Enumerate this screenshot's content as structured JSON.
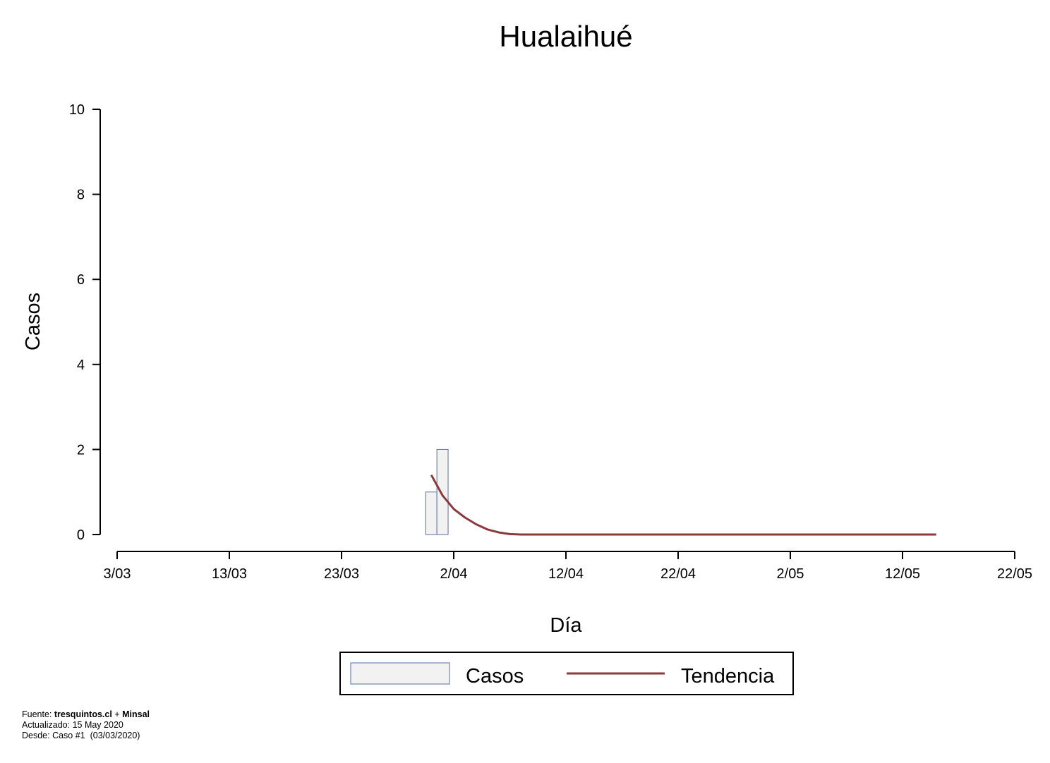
{
  "chart_data": {
    "type": "bar",
    "title": "Hualaihué",
    "xlabel": "Día",
    "ylabel": "Casos",
    "ylim": [
      0,
      10
    ],
    "yticks": [
      0,
      2,
      4,
      6,
      8,
      10
    ],
    "xlim": [
      "2020-03-03",
      "2020-05-22"
    ],
    "xticks": [
      {
        "date": "2020-03-03",
        "label": "3/03"
      },
      {
        "date": "2020-03-13",
        "label": "13/03"
      },
      {
        "date": "2020-03-23",
        "label": "23/03"
      },
      {
        "date": "2020-04-02",
        "label": "2/04"
      },
      {
        "date": "2020-04-12",
        "label": "12/04"
      },
      {
        "date": "2020-04-22",
        "label": "22/04"
      },
      {
        "date": "2020-05-02",
        "label": "2/05"
      },
      {
        "date": "2020-05-12",
        "label": "12/05"
      },
      {
        "date": "2020-05-22",
        "label": "22/05"
      }
    ],
    "series": [
      {
        "name": "Casos",
        "type": "bar",
        "color": "#f2f2f2",
        "border_color": "#5b6e96",
        "x": [
          "2020-03-31",
          "2020-04-01"
        ],
        "values": [
          1,
          2
        ]
      },
      {
        "name": "Tendencia",
        "type": "line",
        "color": "#8b3a3e",
        "x": [
          "2020-03-31",
          "2020-04-01",
          "2020-04-02",
          "2020-04-03",
          "2020-04-04",
          "2020-04-05",
          "2020-04-06",
          "2020-04-07",
          "2020-04-08",
          "2020-05-15"
        ],
        "values": [
          1.4,
          0.92,
          0.6,
          0.4,
          0.24,
          0.12,
          0.05,
          0.01,
          0.0,
          0.0
        ]
      }
    ],
    "legend": {
      "position": "bottom-center",
      "entries": [
        "Casos",
        "Tendencia"
      ]
    }
  },
  "footer": {
    "source_prefix": "Fuente: ",
    "source_a": "tresquintos.cl",
    "source_join": " + ",
    "source_b": "Minsal",
    "updated": "Actualizado: 15 May 2020",
    "since": "Desde: Caso #1  (03/03/2020)"
  }
}
